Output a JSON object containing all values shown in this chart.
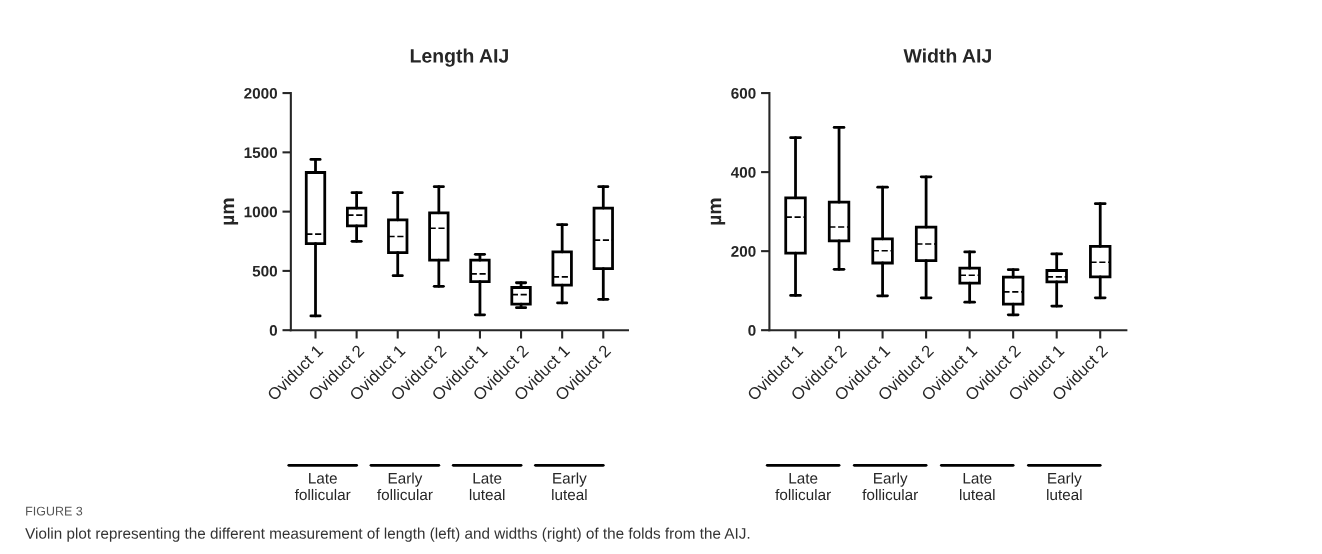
{
  "chart_data": [
    {
      "type": "box",
      "title": "Length AIJ",
      "ylabel": "µm",
      "categories": [
        "Oviduct 1",
        "Oviduct 2",
        "Oviduct 1",
        "Oviduct 2",
        "Oviduct 1",
        "Oviduct 2",
        "Oviduct 1",
        "Oviduct 2"
      ],
      "ylim": [
        0,
        2000
      ],
      "yticks": [
        0,
        500,
        1000,
        1500,
        2000
      ],
      "grid": false,
      "boxes": [
        {
          "low": 120,
          "q1": 730,
          "median": 810,
          "q3": 1330,
          "high": 1440
        },
        {
          "low": 750,
          "q1": 880,
          "median": 970,
          "q3": 1030,
          "high": 1160
        },
        {
          "low": 460,
          "q1": 655,
          "median": 790,
          "q3": 930,
          "high": 1160
        },
        {
          "low": 370,
          "q1": 590,
          "median": 860,
          "q3": 990,
          "high": 1210
        },
        {
          "low": 130,
          "q1": 410,
          "median": 475,
          "q3": 590,
          "high": 640
        },
        {
          "low": 190,
          "q1": 220,
          "median": 300,
          "q3": 360,
          "high": 400
        },
        {
          "low": 230,
          "q1": 380,
          "median": 450,
          "q3": 660,
          "high": 890
        },
        {
          "low": 260,
          "q1": 520,
          "median": 760,
          "q3": 1030,
          "high": 1210
        }
      ],
      "annotations": [
        "Late\nfollicular",
        "Early\nfollicular",
        "Late\nluteal",
        "Early\nluteal",
        "FIGURE 3",
        "Violin plot representing the different measurement of length (left) and widths (right) of the folds from the AIJ."
      ]
    },
    {
      "type": "box",
      "title": "Width AIJ",
      "ylabel": "µm",
      "categories": [
        "Oviduct 1",
        "Oviduct 2",
        "Oviduct 1",
        "Oviduct 2",
        "Oviduct 1",
        "Oviduct 2",
        "Oviduct 1",
        "Oviduct 2"
      ],
      "ylim": [
        0,
        600
      ],
      "yticks": [
        0,
        200,
        400,
        600
      ],
      "grid": false,
      "boxes": [
        {
          "low": 88,
          "q1": 195,
          "median": 286,
          "q3": 335,
          "high": 487
        },
        {
          "low": 154,
          "q1": 226,
          "median": 261,
          "q3": 324,
          "high": 513
        },
        {
          "low": 87,
          "q1": 170,
          "median": 201,
          "q3": 231,
          "high": 362
        },
        {
          "low": 82,
          "q1": 176,
          "median": 218,
          "q3": 261,
          "high": 388
        },
        {
          "low": 71,
          "q1": 119,
          "median": 139,
          "q3": 157,
          "high": 198
        },
        {
          "low": 39,
          "q1": 66,
          "median": 97,
          "q3": 134,
          "high": 153
        },
        {
          "low": 61,
          "q1": 122,
          "median": 135,
          "q3": 151,
          "high": 193
        },
        {
          "low": 82,
          "q1": 135,
          "median": 172,
          "q3": 212,
          "high": 320
        }
      ],
      "annotations": [
        "Late\nfollicular",
        "Early\nfollicular",
        "Late\nluteal",
        "Early\nluteal"
      ]
    }
  ]
}
